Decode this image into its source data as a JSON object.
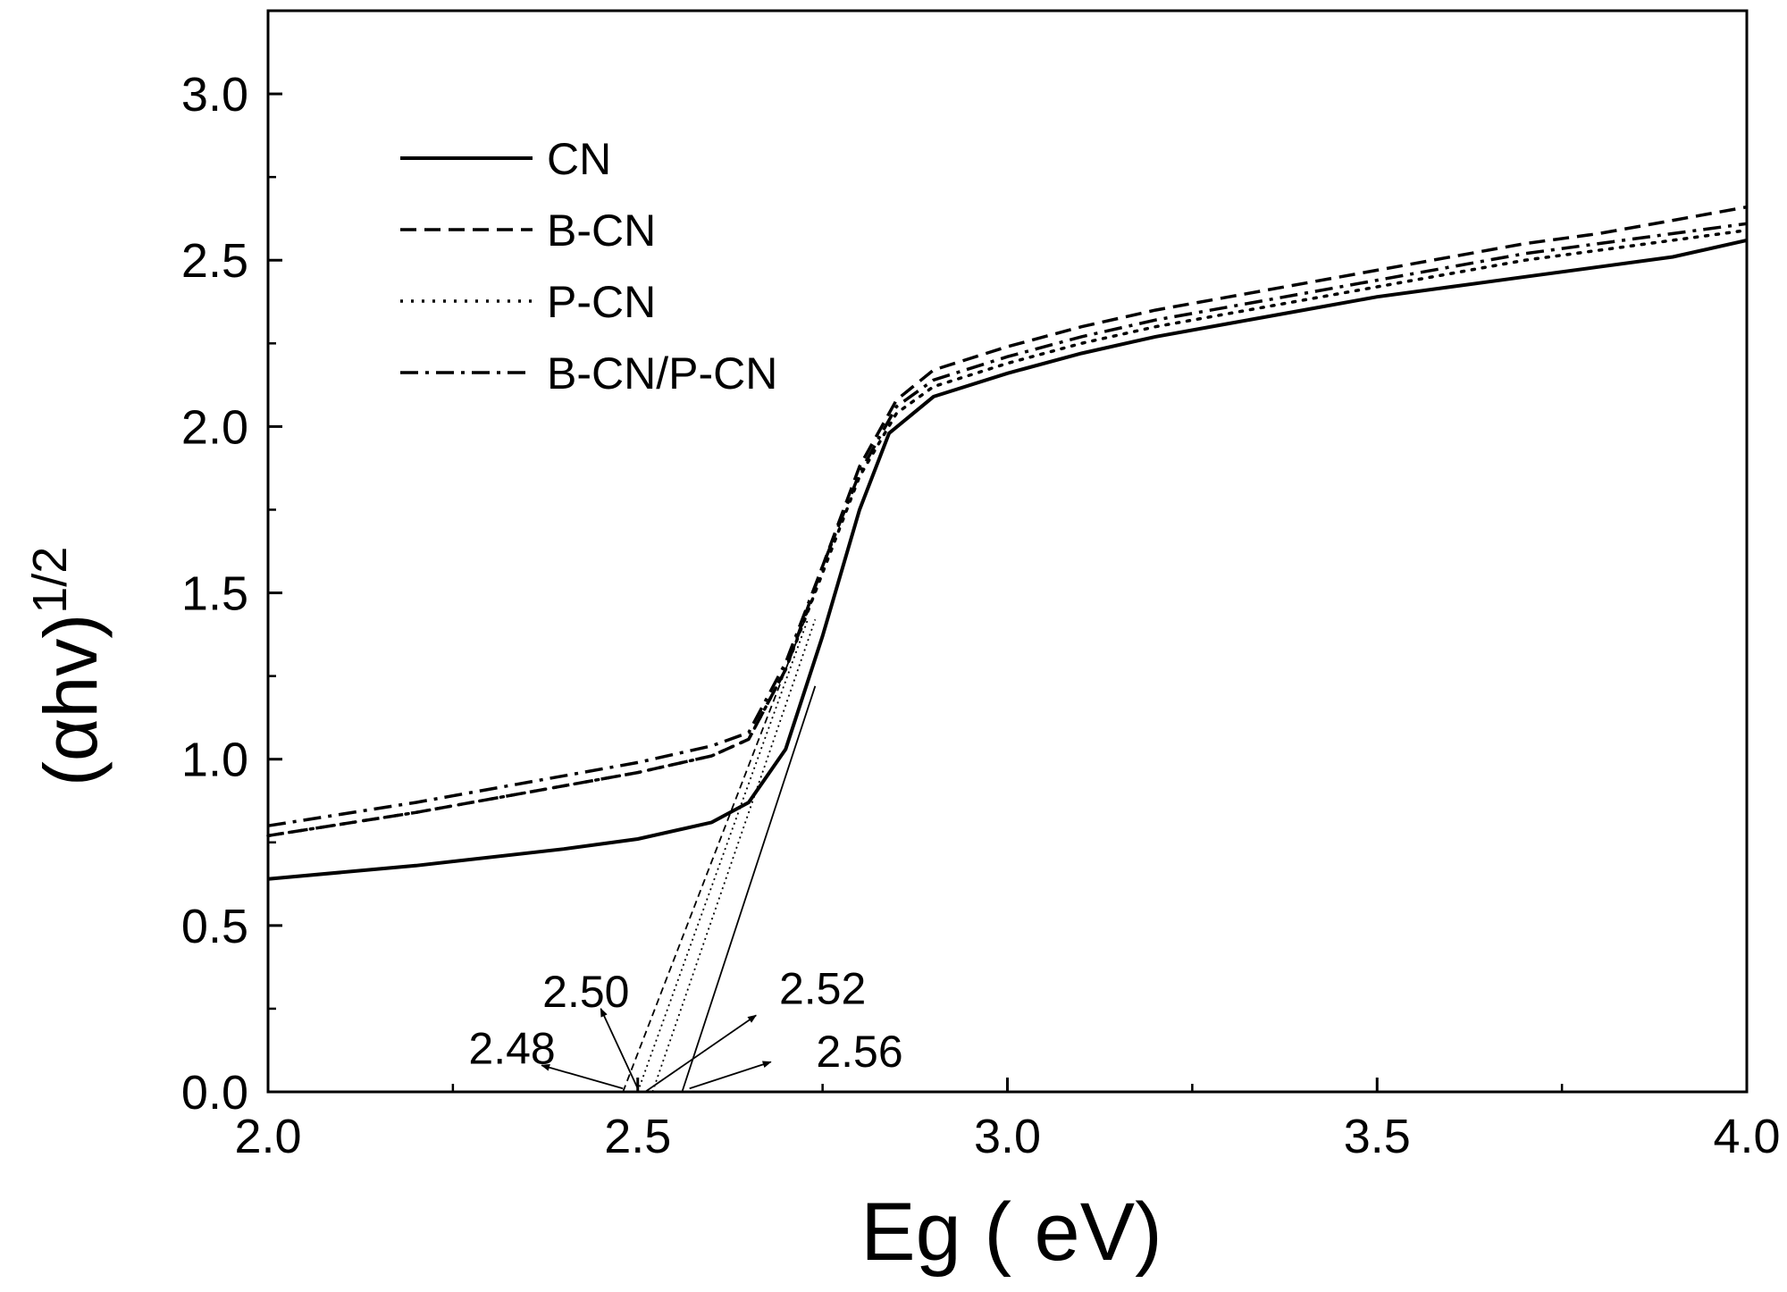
{
  "chart_data": {
    "type": "line",
    "title": "",
    "xlabel": "Eg ( eV)",
    "ylabel_main": "(αhv)",
    "ylabel_superscript": "1/2",
    "xlim": [
      2.0,
      4.0
    ],
    "ylim": [
      0.0,
      3.25
    ],
    "x_ticks": [
      "2.0",
      "2.5",
      "3.0",
      "3.5",
      "4.0"
    ],
    "y_ticks": [
      "0.0",
      "0.5",
      "1.0",
      "1.5",
      "2.0",
      "2.5",
      "3.0"
    ],
    "legend_position": "top-left",
    "series": [
      {
        "name": "CN",
        "style": "solid",
        "points": [
          [
            2.0,
            0.64
          ],
          [
            2.2,
            0.68
          ],
          [
            2.4,
            0.73
          ],
          [
            2.5,
            0.76
          ],
          [
            2.6,
            0.81
          ],
          [
            2.65,
            0.87
          ],
          [
            2.7,
            1.03
          ],
          [
            2.75,
            1.37
          ],
          [
            2.8,
            1.75
          ],
          [
            2.84,
            1.98
          ],
          [
            2.9,
            2.09
          ],
          [
            3.0,
            2.16
          ],
          [
            3.1,
            2.22
          ],
          [
            3.2,
            2.27
          ],
          [
            3.3,
            2.31
          ],
          [
            3.4,
            2.35
          ],
          [
            3.5,
            2.39
          ],
          [
            3.6,
            2.42
          ],
          [
            3.7,
            2.45
          ],
          [
            3.8,
            2.48
          ],
          [
            3.9,
            2.51
          ],
          [
            4.0,
            2.56
          ]
        ]
      },
      {
        "name": "B-CN",
        "style": "dashed",
        "points": [
          [
            2.0,
            0.77
          ],
          [
            2.2,
            0.84
          ],
          [
            2.4,
            0.92
          ],
          [
            2.5,
            0.96
          ],
          [
            2.6,
            1.01
          ],
          [
            2.65,
            1.06
          ],
          [
            2.7,
            1.27
          ],
          [
            2.75,
            1.58
          ],
          [
            2.8,
            1.88
          ],
          [
            2.85,
            2.08
          ],
          [
            2.9,
            2.17
          ],
          [
            3.0,
            2.24
          ],
          [
            3.1,
            2.3
          ],
          [
            3.2,
            2.35
          ],
          [
            3.3,
            2.39
          ],
          [
            3.4,
            2.43
          ],
          [
            3.5,
            2.47
          ],
          [
            3.6,
            2.51
          ],
          [
            3.7,
            2.55
          ],
          [
            3.8,
            2.58
          ],
          [
            3.9,
            2.62
          ],
          [
            4.0,
            2.66
          ]
        ]
      },
      {
        "name": "P-CN",
        "style": "dotted",
        "points": [
          [
            2.0,
            0.77
          ],
          [
            2.2,
            0.84
          ],
          [
            2.4,
            0.92
          ],
          [
            2.5,
            0.96
          ],
          [
            2.6,
            1.01
          ],
          [
            2.65,
            1.06
          ],
          [
            2.7,
            1.27
          ],
          [
            2.75,
            1.56
          ],
          [
            2.8,
            1.85
          ],
          [
            2.85,
            2.04
          ],
          [
            2.9,
            2.12
          ],
          [
            3.0,
            2.19
          ],
          [
            3.1,
            2.25
          ],
          [
            3.2,
            2.3
          ],
          [
            3.3,
            2.34
          ],
          [
            3.4,
            2.38
          ],
          [
            3.5,
            2.42
          ],
          [
            3.6,
            2.46
          ],
          [
            3.7,
            2.5
          ],
          [
            3.8,
            2.53
          ],
          [
            3.9,
            2.56
          ],
          [
            4.0,
            2.59
          ]
        ]
      },
      {
        "name": "B-CN/P-CN",
        "style": "dashdot",
        "points": [
          [
            2.0,
            0.8
          ],
          [
            2.2,
            0.87
          ],
          [
            2.4,
            0.95
          ],
          [
            2.5,
            0.99
          ],
          [
            2.6,
            1.04
          ],
          [
            2.65,
            1.08
          ],
          [
            2.7,
            1.29
          ],
          [
            2.75,
            1.58
          ],
          [
            2.8,
            1.86
          ],
          [
            2.85,
            2.06
          ],
          [
            2.9,
            2.14
          ],
          [
            3.0,
            2.21
          ],
          [
            3.1,
            2.27
          ],
          [
            3.2,
            2.32
          ],
          [
            3.3,
            2.36
          ],
          [
            3.4,
            2.4
          ],
          [
            3.5,
            2.44
          ],
          [
            3.6,
            2.48
          ],
          [
            3.7,
            2.52
          ],
          [
            3.8,
            2.55
          ],
          [
            3.9,
            2.58
          ],
          [
            4.0,
            2.61
          ]
        ]
      }
    ],
    "tangent_lines": [
      {
        "series": "B-CN",
        "style": "dashed",
        "from": [
          2.48,
          0.0
        ],
        "to": [
          2.74,
          1.5
        ]
      },
      {
        "series": "B-CN/P-CN",
        "style": "dotted",
        "from": [
          2.5,
          0.0
        ],
        "to": [
          2.73,
          1.42
        ]
      },
      {
        "series": "P-CN",
        "style": "dotted",
        "from": [
          2.52,
          0.0
        ],
        "to": [
          2.74,
          1.42
        ]
      },
      {
        "series": "CN",
        "style": "solid",
        "from": [
          2.56,
          0.0
        ],
        "to": [
          2.74,
          1.22
        ]
      }
    ],
    "annotations": [
      {
        "label": "2.48",
        "arrow_from": [
          2.48,
          0.01
        ],
        "arrow_to": [
          2.37,
          0.08
        ],
        "text_at": [
          2.33,
          0.12
        ]
      },
      {
        "label": "2.50",
        "arrow_from": [
          2.5,
          0.01
        ],
        "arrow_to": [
          2.45,
          0.25
        ],
        "text_at": [
          2.43,
          0.29
        ]
      },
      {
        "label": "2.52",
        "arrow_from": [
          2.51,
          0.0
        ],
        "arrow_to": [
          2.66,
          0.23
        ],
        "text_at": [
          2.75,
          0.3
        ]
      },
      {
        "label": "2.56",
        "arrow_from": [
          2.57,
          0.01
        ],
        "arrow_to": [
          2.68,
          0.09
        ],
        "text_at": [
          2.8,
          0.11
        ]
      }
    ]
  }
}
